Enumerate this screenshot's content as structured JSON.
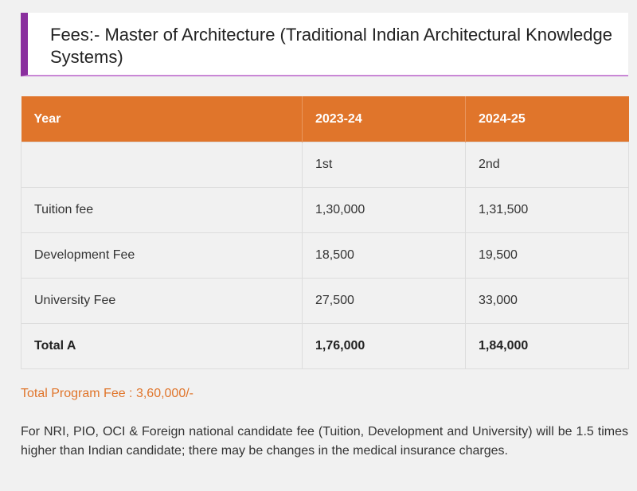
{
  "heading": {
    "title": "Fees:- Master of Architecture (Traditional Indian Architectural Knowledge Systems)"
  },
  "colors": {
    "accent_purple": "#8a2f9e",
    "header_orange": "#e0752b"
  },
  "table": {
    "headers": [
      "Year",
      "2023-24",
      "2024-25"
    ],
    "rows": [
      [
        "",
        "1st",
        "2nd"
      ],
      [
        "Tuition fee",
        "1,30,000",
        "1,31,500"
      ],
      [
        "Development Fee",
        "18,500",
        "19,500"
      ],
      [
        "University Fee",
        "27,500",
        "33,000"
      ],
      [
        "Total A",
        "1,76,000",
        "1,84,000"
      ]
    ]
  },
  "total_program_fee": "Total Program Fee : 3,60,000/-",
  "note": "For NRI, PIO, OCI & Foreign national candidate fee (Tuition, Development and University) will be 1.5 times higher than Indian candidate; there may be changes in the medical insurance charges."
}
